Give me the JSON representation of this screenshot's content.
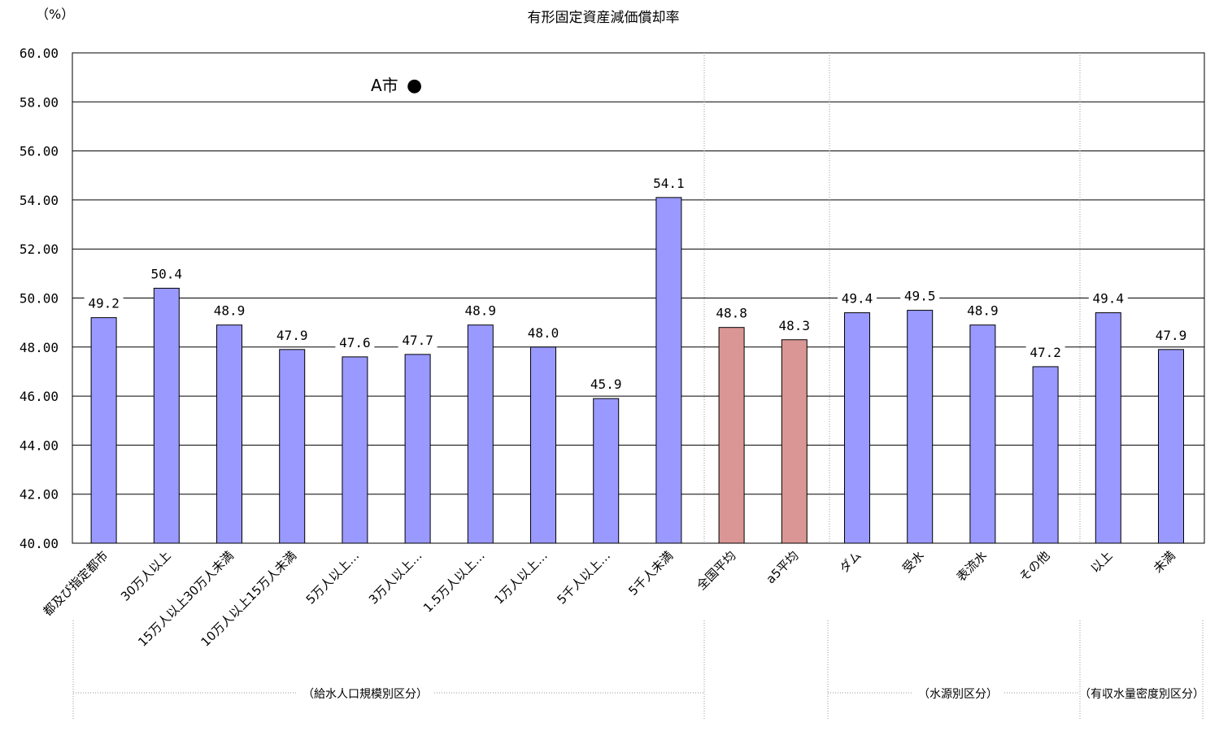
{
  "chart_data": {
    "type": "bar",
    "title": "有形固定資産減価償却率",
    "ylabel": "（%）",
    "ylim": [
      40,
      60
    ],
    "yticks": [
      "40.00",
      "42.00",
      "44.00",
      "46.00",
      "48.00",
      "50.00",
      "52.00",
      "54.00",
      "56.00",
      "58.00",
      "60.00"
    ],
    "grid": true,
    "categories": [
      "都及び指定都市",
      "30万人以上",
      "15万人以上30万人未満",
      "10万人以上15万人未満",
      "5万人以上…",
      "3万人以上…",
      "1.5万人以上…",
      "1万人以上…",
      "5千人以上…",
      "5千人未満",
      "全国平均",
      "a5平均",
      "ダム",
      "受水",
      "表流水",
      "その他",
      "以上",
      "未満"
    ],
    "values": [
      49.2,
      50.4,
      48.9,
      47.9,
      47.6,
      47.7,
      48.9,
      48.0,
      45.9,
      54.1,
      48.8,
      48.3,
      49.4,
      49.5,
      48.9,
      47.2,
      49.4,
      47.9
    ],
    "value_labels": [
      "49.2",
      "50.4",
      "48.9",
      "47.9",
      "47.6",
      "47.7",
      "48.9",
      "48.0",
      "45.9",
      "54.1",
      "48.8",
      "48.3",
      "49.4",
      "49.5",
      "48.9",
      "47.2",
      "49.4",
      "47.9"
    ],
    "highlight_indices": [
      10,
      11
    ],
    "legend": {
      "label": "A市",
      "marker": "●"
    },
    "groups": [
      {
        "label": "（給水人口規模別区分）"
      },
      {
        "label": "（水源別区分）"
      },
      {
        "label": "（有収水量密度別区分）"
      }
    ]
  },
  "colors": {
    "bar": "#9999ff",
    "bar_highlight": "#da9694",
    "bar_stroke": "#000000",
    "grid": "#000000",
    "divider": "#999999"
  }
}
